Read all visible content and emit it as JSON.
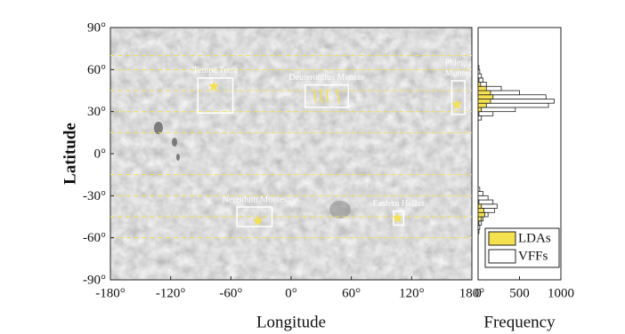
{
  "chart_data": [
    {
      "type": "map",
      "xlabel": "Longitude",
      "ylabel": "Latitude",
      "xlim": [
        -180,
        180
      ],
      "ylim": [
        -90,
        90
      ],
      "xticks": [
        {
          "value": -180,
          "label": "-180°"
        },
        {
          "value": -120,
          "label": "-120°"
        },
        {
          "value": -60,
          "label": "-60°"
        },
        {
          "value": 0,
          "label": "0°"
        },
        {
          "value": 60,
          "label": "60°"
        },
        {
          "value": 120,
          "label": "120°"
        },
        {
          "value": 180,
          "label": "180°"
        }
      ],
      "yticks": [
        {
          "value": 90,
          "label": "90°"
        },
        {
          "value": 60,
          "label": "60°"
        },
        {
          "value": 30,
          "label": "30°"
        },
        {
          "value": 0,
          "label": "0°"
        },
        {
          "value": -30,
          "label": "-30°"
        },
        {
          "value": -60,
          "label": "-60°"
        },
        {
          "value": -90,
          "label": "-90°"
        }
      ],
      "dashed_latitudes": [
        70,
        60,
        45,
        30,
        15,
        -15,
        -30,
        -45,
        -60
      ],
      "line_color": "#f5e050",
      "regions": [
        {
          "name": [
            "Tempe Terra"
          ],
          "lon": [
            -93,
            -58
          ],
          "lat": [
            29,
            54
          ],
          "star": [
            -77,
            48
          ]
        },
        {
          "name": [
            "Deuteronilus Mensae"
          ],
          "lon": [
            14,
            57
          ],
          "lat": [
            33,
            49
          ],
          "flow_lon": [
            24,
            30,
            36,
            47
          ]
        },
        {
          "name": [
            "Phlegra",
            "Montes"
          ],
          "lon": [
            160,
            173
          ],
          "lat": [
            28,
            52
          ],
          "star": [
            165,
            35
          ]
        },
        {
          "name": [
            "Nereidum Montes"
          ],
          "lon": [
            -54,
            -19
          ],
          "lat": [
            -52,
            -38
          ],
          "star": [
            -33,
            -48
          ]
        },
        {
          "name": [
            "Eastern Hellas"
          ],
          "lon": [
            102,
            112
          ],
          "lat": [
            -51,
            -41
          ],
          "star": [
            106,
            -46
          ]
        }
      ]
    },
    {
      "type": "histogram",
      "xlabel": "Frequency",
      "xlim": [
        0,
        1000
      ],
      "xticks": [
        0,
        500,
        1000
      ],
      "ylim": [
        -90,
        90
      ],
      "orientation": "horizontal",
      "bins": [
        -57,
        -54,
        -51,
        -48,
        -45,
        -42,
        -39,
        -36,
        -33,
        -30,
        -27,
        -24,
        -21,
        -18,
        -15,
        -12,
        -9,
        -6,
        -3,
        0,
        3,
        6,
        9,
        12,
        15,
        18,
        21,
        24,
        27,
        30,
        33,
        36,
        39,
        42,
        45,
        48,
        51,
        54,
        57,
        60,
        63
      ],
      "series": [
        {
          "name": "VFFs",
          "color": "#ffffff",
          "values": [
            10,
            20,
            40,
            60,
            120,
            200,
            230,
            180,
            120,
            60,
            20,
            0,
            0,
            0,
            0,
            0,
            0,
            0,
            0,
            0,
            0,
            0,
            0,
            0,
            0,
            0,
            0,
            40,
            180,
            450,
            850,
            920,
            820,
            500,
            280,
            100,
            60,
            40,
            20,
            10
          ]
        },
        {
          "name": "LDAs",
          "color": "#f5e050",
          "values": [
            0,
            0,
            10,
            40,
            80,
            70,
            40,
            10,
            0,
            0,
            0,
            0,
            0,
            0,
            0,
            0,
            0,
            0,
            0,
            0,
            0,
            0,
            0,
            0,
            0,
            0,
            0,
            0,
            10,
            40,
            100,
            150,
            180,
            150,
            100,
            30,
            10,
            0,
            0,
            0
          ]
        }
      ],
      "legend": "lower right"
    }
  ]
}
